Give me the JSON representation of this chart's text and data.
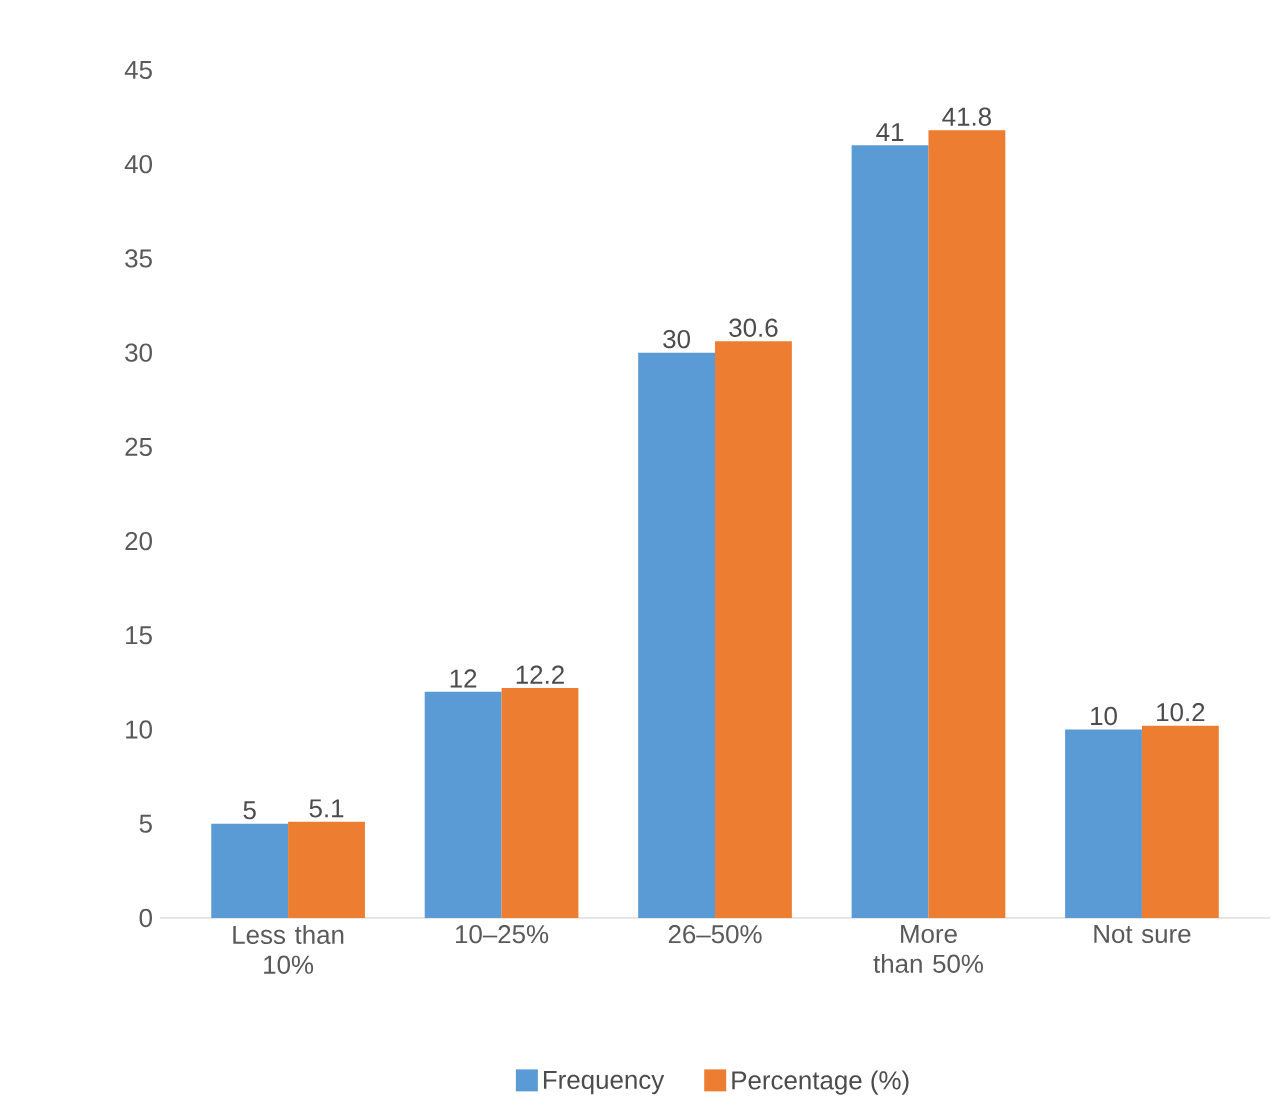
{
  "chart_data": {
    "type": "bar",
    "categories": [
      "Less than 10%",
      "10–25%",
      "26–50%",
      "More than 50%",
      "Not sure"
    ],
    "series": [
      {
        "name": "Frequency",
        "color": "#5b9bd5",
        "values": [
          5,
          12,
          30,
          41,
          10
        ]
      },
      {
        "name": "Percentage (%)",
        "color": "#ed7d31",
        "values": [
          5.1,
          12.2,
          30.6,
          41.8,
          10.2
        ]
      }
    ],
    "ylim": [
      0,
      45
    ],
    "yticks": [
      0,
      5,
      10,
      15,
      20,
      25,
      30,
      35,
      40,
      45
    ],
    "data_labels": true,
    "grid": false,
    "legend": "bottom"
  }
}
